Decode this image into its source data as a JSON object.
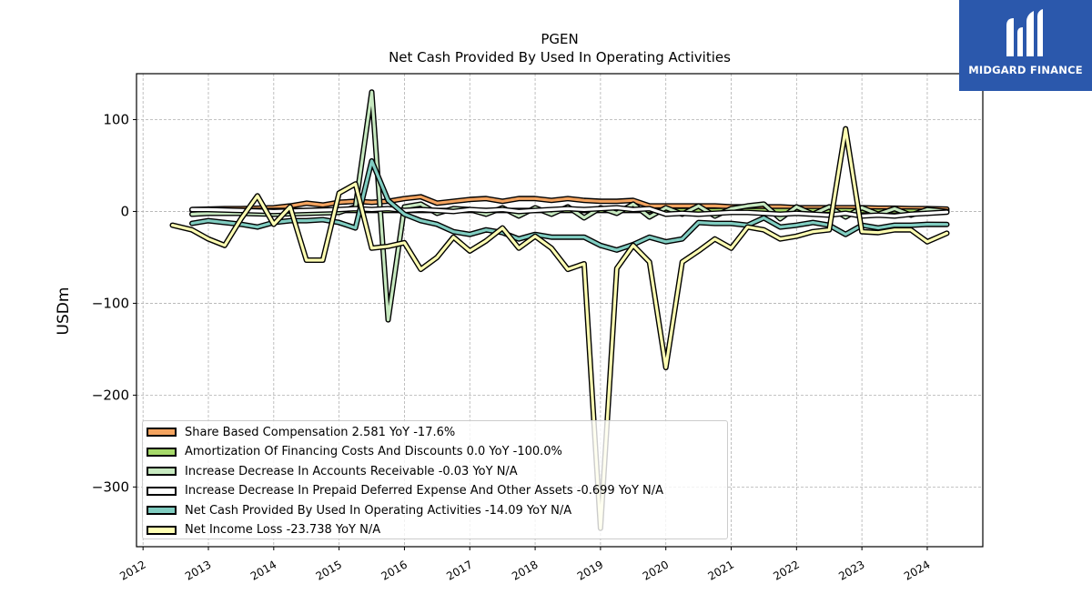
{
  "chart_data": {
    "type": "line",
    "title": "PGEN",
    "subtitle": "Net Cash Provided By Used In Operating Activities",
    "ylabel": "USDm",
    "xlabel": "",
    "xlim": [
      2011.9,
      2024.85
    ],
    "ylim": [
      -365,
      150
    ],
    "yticks": [
      100,
      0,
      -100,
      -200,
      -300
    ],
    "ytick_labels": [
      "100",
      "0",
      "−100",
      "−200",
      "−300"
    ],
    "xticks": [
      2012,
      2013,
      2014,
      2015,
      2016,
      2017,
      2018,
      2019,
      2020,
      2021,
      2022,
      2023,
      2024
    ],
    "xtick_labels": [
      "2012",
      "2013",
      "2014",
      "2015",
      "2016",
      "2017",
      "2018",
      "2019",
      "2020",
      "2021",
      "2022",
      "2023",
      "2024"
    ],
    "grid": true,
    "legend_position": "lower-left",
    "series": [
      {
        "name": "Share Based Compensation",
        "legend_label": "Share Based Compensation  2.581 YoY -17.6%",
        "color": "#f4a460",
        "x": [
          2012.75,
          2013.0,
          2013.25,
          2013.5,
          2013.75,
          2014.0,
          2014.25,
          2014.5,
          2014.75,
          2015.0,
          2015.25,
          2015.5,
          2015.75,
          2016.0,
          2016.25,
          2016.5,
          2016.75,
          2017.0,
          2017.25,
          2017.5,
          2017.75,
          2018.0,
          2018.25,
          2018.5,
          2018.75,
          2019.0,
          2019.25,
          2019.5,
          2019.75,
          2020.0,
          2020.25,
          2020.5,
          2020.75,
          2021.0,
          2021.25,
          2021.5,
          2021.75,
          2022.0,
          2022.25,
          2022.5,
          2022.75,
          2023.0,
          2023.25,
          2023.5,
          2023.75,
          2024.0,
          2024.3
        ],
        "y": [
          2.0,
          2.5,
          3.0,
          3.0,
          3.5,
          4.0,
          6.0,
          9.0,
          7.0,
          10.0,
          11.0,
          10.0,
          11.0,
          14.0,
          16.0,
          9.0,
          11.0,
          13.0,
          14.0,
          11.0,
          14.0,
          14.0,
          12.0,
          14.0,
          12.0,
          11.0,
          11.0,
          12.0,
          6.0,
          6.0,
          6.0,
          6.0,
          6.0,
          5.0,
          5.0,
          5.0,
          5.0,
          4.0,
          4.0,
          4.0,
          4.0,
          4.0,
          3.5,
          3.5,
          3.0,
          3.0,
          2.581
        ]
      },
      {
        "name": "Amortization Of Financing Costs And Discounts",
        "legend_label": "Amortization Of Financing Costs And Discounts  0.0 YoY -100.0%",
        "color": "#a6d96a",
        "x": [
          2012.75,
          2013.25,
          2013.75,
          2014.25,
          2014.75,
          2015.25,
          2015.75,
          2016.25,
          2016.75,
          2017.25,
          2017.75,
          2018.25,
          2018.75,
          2019.25,
          2019.75,
          2020.25,
          2020.75,
          2021.25,
          2021.75,
          2022.25,
          2022.75,
          2023.25,
          2023.75,
          2024.3
        ],
        "y": [
          1.0,
          1.0,
          1.0,
          1.0,
          1.0,
          1.0,
          1.0,
          1.0,
          1.0,
          1.0,
          1.0,
          1.0,
          1.0,
          1.0,
          1.0,
          1.0,
          1.0,
          1.0,
          1.0,
          1.0,
          1.0,
          0.5,
          0.5,
          0.0
        ]
      },
      {
        "name": "Increase Decrease In Accounts Receivable",
        "legend_label": "Increase Decrease In Accounts Receivable  -0.03 YoY N/A",
        "color": "#c7e9c0",
        "x": [
          2012.75,
          2013.0,
          2013.5,
          2014.0,
          2014.5,
          2015.0,
          2015.25,
          2015.5,
          2015.75,
          2016.0,
          2016.25,
          2016.5,
          2016.75,
          2017.0,
          2017.25,
          2017.5,
          2017.75,
          2018.0,
          2018.25,
          2018.5,
          2018.75,
          2019.0,
          2019.25,
          2019.5,
          2019.75,
          2020.0,
          2020.25,
          2020.5,
          2020.75,
          2021.0,
          2021.25,
          2021.5,
          2021.75,
          2022.0,
          2022.25,
          2022.5,
          2022.75,
          2023.0,
          2023.25,
          2023.5,
          2023.75,
          2024.0,
          2024.3
        ],
        "y": [
          -3.0,
          -2.0,
          -2.0,
          -3.0,
          -2.0,
          -1.0,
          5.0,
          130.0,
          -118.0,
          5.0,
          8.0,
          -2.0,
          3.0,
          2.0,
          -3.0,
          4.0,
          -5.0,
          4.0,
          -3.0,
          5.0,
          -7.0,
          4.0,
          -2.0,
          8.0,
          -6.0,
          4.0,
          -3.0,
          6.0,
          -5.0,
          3.0,
          6.0,
          8.0,
          -8.0,
          5.0,
          -3.0,
          5.0,
          -6.0,
          4.0,
          -3.0,
          3.0,
          -4.0,
          2.0,
          -0.03
        ]
      },
      {
        "name": "Increase Decrease In Prepaid Deferred Expense And Other Assets",
        "legend_label": "Increase Decrease In Prepaid Deferred Expense And Other Assets  -0.699 YoY N/A",
        "color": "#ffffff",
        "x": [
          2012.75,
          2013.0,
          2013.5,
          2014.0,
          2014.5,
          2015.0,
          2015.25,
          2015.5,
          2015.75,
          2016.0,
          2016.25,
          2016.5,
          2016.75,
          2017.0,
          2017.25,
          2017.5,
          2017.75,
          2018.0,
          2018.25,
          2018.5,
          2018.75,
          2019.0,
          2019.25,
          2019.5,
          2019.75,
          2020.0,
          2020.25,
          2020.5,
          2020.75,
          2021.0,
          2021.25,
          2021.5,
          2021.75,
          2022.0,
          2022.25,
          2022.5,
          2022.75,
          2023.0,
          2023.25,
          2023.5,
          2023.75,
          2024.0,
          2024.3
        ],
        "y": [
          2.0,
          2.0,
          1.0,
          0.0,
          1.0,
          2.0,
          3.0,
          2.0,
          3.0,
          1.0,
          2.0,
          1.0,
          0.0,
          2.0,
          1.0,
          2.0,
          0.0,
          1.0,
          2.0,
          3.0,
          2.0,
          3.0,
          4.0,
          2.0,
          3.0,
          -3.0,
          -2.0,
          -3.0,
          -2.0,
          -1.0,
          -1.0,
          -2.0,
          -3.0,
          -2.0,
          -3.0,
          -4.0,
          -2.0,
          -5.0,
          -4.0,
          -5.0,
          -3.0,
          -2.0,
          -0.699
        ]
      },
      {
        "name": "Net Cash Provided By Used In Operating Activities",
        "legend_label": "Net Cash Provided By Used In Operating Activities  -14.09 YoY N/A",
        "color": "#80cdc1",
        "x": [
          2012.75,
          2013.0,
          2013.25,
          2013.5,
          2013.75,
          2014.0,
          2014.25,
          2014.5,
          2014.75,
          2015.0,
          2015.25,
          2015.5,
          2015.75,
          2016.0,
          2016.25,
          2016.5,
          2016.75,
          2017.0,
          2017.25,
          2017.5,
          2017.75,
          2018.0,
          2018.25,
          2018.5,
          2018.75,
          2019.0,
          2019.25,
          2019.5,
          2019.75,
          2020.0,
          2020.25,
          2020.5,
          2020.75,
          2021.0,
          2021.25,
          2021.5,
          2021.75,
          2022.0,
          2022.25,
          2022.5,
          2022.75,
          2023.0,
          2023.25,
          2023.5,
          2023.75,
          2024.0,
          2024.3
        ],
        "y": [
          -13.0,
          -10.0,
          -12.0,
          -14.0,
          -17.0,
          -12.0,
          -10.0,
          -10.0,
          -9.0,
          -12.0,
          -18.0,
          55.0,
          12.0,
          -3.0,
          -10.0,
          -14.0,
          -22.0,
          -25.0,
          -20.0,
          -23.0,
          -30.0,
          -25.0,
          -28.0,
          -28.0,
          -28.0,
          -37.0,
          -42.0,
          -36.0,
          -28.0,
          -33.0,
          -30.0,
          -12.0,
          -13.0,
          -13.0,
          -15.0,
          -7.0,
          -17.0,
          -15.0,
          -12.0,
          -15.0,
          -25.0,
          -15.0,
          -18.0,
          -15.0,
          -15.0,
          -14.0,
          -14.09
        ]
      },
      {
        "name": "Net Income Loss",
        "legend_label": "Net Income Loss  -23.738 YoY N/A",
        "color": "#ffffb3",
        "x": [
          2012.45,
          2012.75,
          2013.0,
          2013.25,
          2013.5,
          2013.75,
          2014.0,
          2014.25,
          2014.5,
          2014.75,
          2015.0,
          2015.25,
          2015.5,
          2015.75,
          2016.0,
          2016.25,
          2016.5,
          2016.75,
          2017.0,
          2017.25,
          2017.5,
          2017.75,
          2018.0,
          2018.25,
          2018.5,
          2018.75,
          2019.0,
          2019.25,
          2019.5,
          2019.75,
          2020.0,
          2020.25,
          2020.5,
          2020.75,
          2021.0,
          2021.25,
          2021.5,
          2021.75,
          2022.0,
          2022.25,
          2022.5,
          2022.75,
          2023.0,
          2023.25,
          2023.5,
          2023.75,
          2024.0,
          2024.3
        ],
        "y": [
          -15.0,
          -20.0,
          -30.0,
          -37.0,
          -8.0,
          17.0,
          -14.0,
          5.0,
          -53.0,
          -53.0,
          20.0,
          30.0,
          -40.0,
          -38.0,
          -34.0,
          -63.0,
          -50.0,
          -28.0,
          -43.0,
          -32.0,
          -18.0,
          -40.0,
          -27.0,
          -40.0,
          -63.0,
          -57.0,
          -345.0,
          -62.0,
          -37.0,
          -55.0,
          -170.0,
          -55.0,
          -43.0,
          -30.0,
          -40.0,
          -17.0,
          -20.0,
          -30.0,
          -27.0,
          -22.0,
          -20.0,
          90.0,
          -22.0,
          -23.0,
          -20.0,
          -20.0,
          -33.0,
          -23.738
        ]
      }
    ]
  },
  "brand": {
    "name": "MIDGARD FINANCE",
    "logo_icon": "midgard-logo-icon",
    "bg_color": "#2b58ac"
  }
}
